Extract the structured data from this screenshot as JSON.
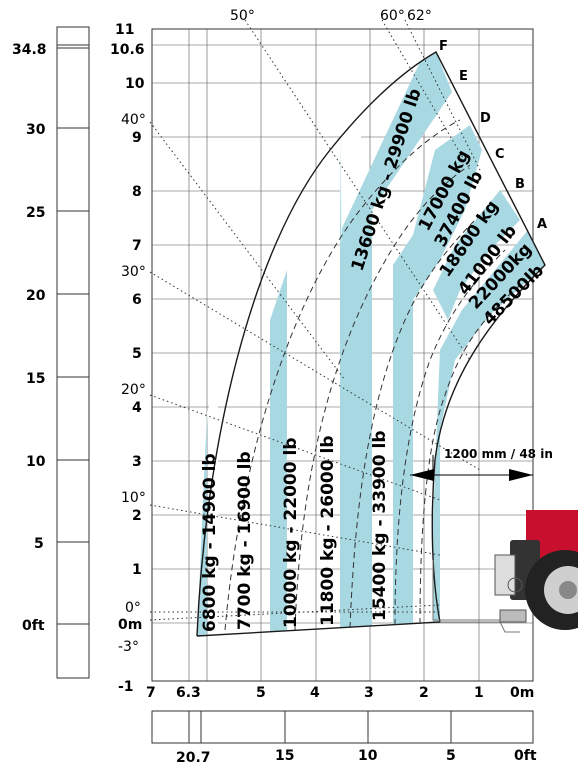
{
  "left_ft_scale": {
    "ticks": [
      "34.8",
      "30",
      "25",
      "20",
      "15",
      "10",
      "5",
      "0ft"
    ]
  },
  "left_m_scale": {
    "ticks": [
      "11",
      "10.6",
      "10",
      "9",
      "8",
      "7",
      "6",
      "5",
      "4",
      "3",
      "2",
      "1",
      "0m",
      "-1"
    ]
  },
  "bottom_m_scale": {
    "ticks": [
      "7",
      "6.3",
      "5",
      "4",
      "3",
      "2",
      "1",
      "0m"
    ]
  },
  "bottom_ft_scale": {
    "ticks": [
      "20.7",
      "15",
      "10",
      "5",
      "0ft"
    ]
  },
  "angles": {
    "top": [
      "50°",
      "60°",
      "62°"
    ],
    "left": [
      "40°",
      "30°",
      "20°",
      "10°",
      "0°",
      "-3°"
    ]
  },
  "curve_letters": [
    "F",
    "E",
    "D",
    "C",
    "B",
    "A"
  ],
  "load_zones": [
    "6800 kg - 14900 lb",
    "7700 kg - 16900 lb",
    "10000 kg - 22000 lb",
    "11800 kg - 26000 lb",
    "15400 kg - 33900 lb",
    "13600 kg - 29900 lb",
    "17000 kg",
    "37400 lb",
    "18600 kg",
    "41000 lb",
    "22000kg",
    "48500lb"
  ],
  "dimension_label": "1200 mm / 48 in",
  "colors": {
    "zone_fill": "#a8d8e2",
    "outline": "#1a1a1a",
    "machine_red": "#c8102e"
  }
}
